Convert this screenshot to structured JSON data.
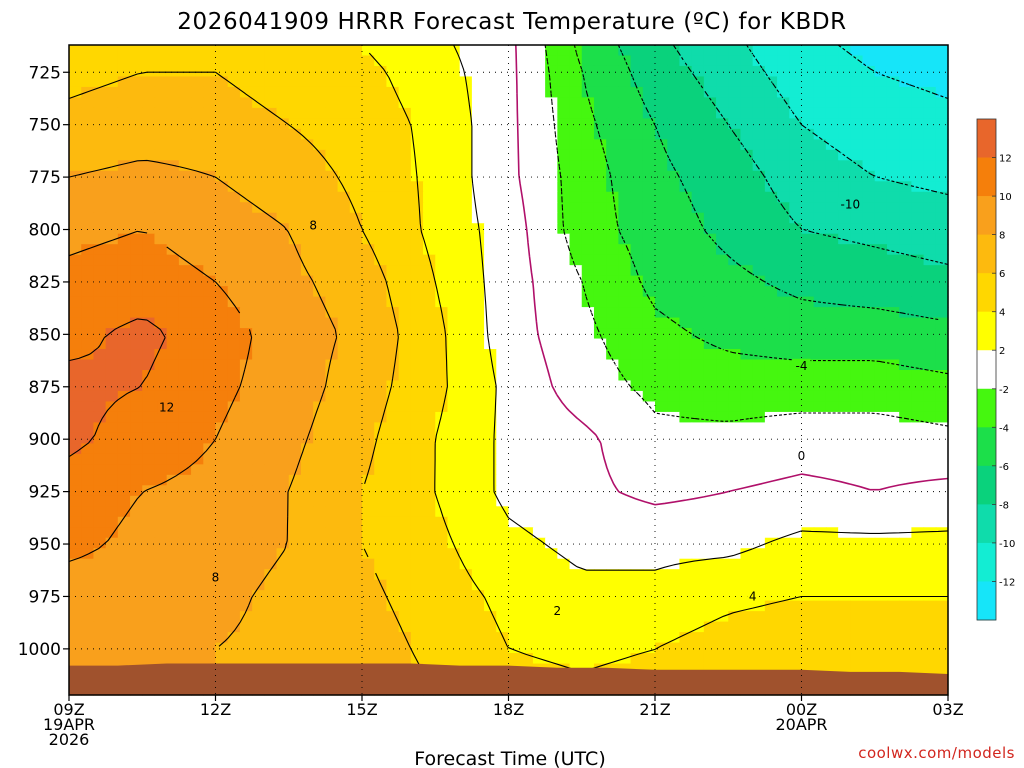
{
  "chart_data": {
    "type": "heatmap",
    "title": "2026041909 HRRR Forecast Temperature (ºC) for KBDR",
    "xlabel": "Forecast Time (UTC)",
    "ylabel": "",
    "x_ticks": [
      {
        "hour": 0,
        "lines": [
          "09Z",
          "19APR",
          "2026"
        ]
      },
      {
        "hour": 3,
        "lines": [
          "12Z"
        ]
      },
      {
        "hour": 6,
        "lines": [
          "15Z"
        ]
      },
      {
        "hour": 9,
        "lines": [
          "18Z"
        ]
      },
      {
        "hour": 12,
        "lines": [
          "21Z"
        ]
      },
      {
        "hour": 15,
        "lines": [
          "00Z",
          "20APR"
        ]
      },
      {
        "hour": 18,
        "lines": [
          "03Z"
        ]
      }
    ],
    "xlim_hours": [
      0,
      18
    ],
    "y_ticks": [
      725,
      750,
      775,
      800,
      825,
      850,
      875,
      900,
      925,
      950,
      975,
      1000
    ],
    "ylim_hpa": [
      712,
      1022
    ],
    "grid": true,
    "surface_pressure": [
      1008,
      1008,
      1007,
      1007,
      1007,
      1007,
      1007,
      1007,
      1008,
      1008,
      1009,
      1009,
      1010,
      1010,
      1010,
      1010,
      1011,
      1011,
      1012
    ],
    "temperature_grid": {
      "hours": [
        0,
        1.5,
        3,
        4.5,
        6,
        7.5,
        9,
        10.5,
        12,
        13.5,
        15,
        16.5,
        18
      ],
      "pressures": [
        712,
        725,
        750,
        775,
        800,
        825,
        850,
        875,
        900,
        925,
        950,
        975,
        1000,
        1022
      ],
      "values": [
        [
          5.0,
          5.5,
          5.5,
          4.5,
          4.0,
          2.5,
          0.5,
          -4.5,
          -7.5,
          -9.5,
          -11.5,
          -12.5,
          -13.0
        ],
        [
          5.5,
          6.0,
          6.0,
          5.0,
          4.5,
          3.0,
          0.5,
          -4.0,
          -7.0,
          -9.0,
          -11.0,
          -12.0,
          -12.5
        ],
        [
          6.5,
          7.0,
          7.0,
          6.0,
          5.0,
          3.5,
          0.5,
          -3.5,
          -6.0,
          -8.0,
          -10.0,
          -11.0,
          -11.5
        ],
        [
          8.0,
          8.5,
          8.0,
          7.0,
          5.5,
          3.5,
          0.5,
          -3.0,
          -5.5,
          -7.0,
          -9.0,
          -10.0,
          -10.5
        ],
        [
          9.5,
          10.0,
          9.0,
          8.0,
          6.0,
          3.5,
          1.0,
          -3.0,
          -5.0,
          -6.5,
          -8.0,
          -8.5,
          -9.0
        ],
        [
          10.5,
          11.0,
          10.0,
          8.5,
          7.0,
          4.0,
          1.0,
          -2.0,
          -4.5,
          -5.5,
          -6.5,
          -7.0,
          -7.5
        ],
        [
          11.5,
          12.5,
          11.0,
          9.0,
          7.5,
          4.5,
          1.0,
          -1.5,
          -3.5,
          -4.5,
          -5.0,
          -5.0,
          -5.5
        ],
        [
          12.5,
          12.0,
          10.5,
          9.0,
          7.0,
          4.5,
          1.5,
          -1.0,
          -2.5,
          -3.0,
          -3.0,
          -3.0,
          -3.5
        ],
        [
          12.5,
          11.0,
          10.0,
          8.5,
          6.5,
          4.0,
          1.5,
          0.5,
          -1.5,
          -1.5,
          -1.0,
          -1.0,
          -1.5
        ],
        [
          11.0,
          10.0,
          9.5,
          8.0,
          6.0,
          4.0,
          1.5,
          0.5,
          -0.5,
          0.0,
          0.5,
          0.0,
          0.5
        ],
        [
          10.5,
          9.5,
          9.0,
          8.0,
          6.0,
          4.5,
          2.5,
          1.5,
          1.5,
          1.5,
          2.5,
          2.5,
          2.5
        ],
        [
          9.0,
          9.0,
          8.5,
          7.5,
          6.5,
          5.0,
          3.5,
          2.5,
          2.5,
          3.5,
          4.0,
          4.0,
          4.0
        ],
        [
          8.5,
          8.5,
          8.0,
          7.5,
          7.0,
          5.5,
          4.0,
          3.5,
          4.0,
          5.0,
          5.5,
          5.5,
          5.5
        ],
        [
          8.5,
          8.5,
          8.0,
          7.5,
          7.5,
          6.0,
          5.0,
          4.5,
          5.0,
          5.5,
          5.5,
          6.0,
          6.0
        ]
      ]
    },
    "contour_levels": [
      -12,
      -10,
      -8,
      -6,
      -4,
      -2,
      0,
      2,
      4,
      6,
      8,
      10,
      12
    ],
    "contour_labels": [
      {
        "text": "8",
        "hour": 5.0,
        "p": 798
      },
      {
        "text": "12",
        "hour": 2.0,
        "p": 885
      },
      {
        "text": "8",
        "hour": 3.0,
        "p": 966
      },
      {
        "text": "2",
        "hour": 10.0,
        "p": 982
      },
      {
        "text": "-10",
        "hour": 16.0,
        "p": 788
      },
      {
        "text": "-4",
        "hour": 15.0,
        "p": 865
      },
      {
        "text": "0",
        "hour": 15.0,
        "p": 908
      },
      {
        "text": "4",
        "hour": 14.0,
        "p": 975
      }
    ],
    "colorbar": {
      "ticks": [
        "12",
        "10",
        "8",
        "6",
        "4",
        "2",
        "-2",
        "-4",
        "-6",
        "-8",
        "-10",
        "-12"
      ],
      "bands": [
        {
          "from": 14,
          "to": 12,
          "color": "#e8662b"
        },
        {
          "from": 12,
          "to": 10,
          "color": "#f57f0b"
        },
        {
          "from": 10,
          "to": 8,
          "color": "#f9a01c"
        },
        {
          "from": 8,
          "to": 6,
          "color": "#fdba0e"
        },
        {
          "from": 6,
          "to": 4,
          "color": "#ffd700"
        },
        {
          "from": 4,
          "to": 2,
          "color": "#ffff00"
        },
        {
          "from": 2,
          "to": -2,
          "color": "#ffffff"
        },
        {
          "from": -2,
          "to": -4,
          "color": "#45f70f"
        },
        {
          "from": -4,
          "to": -6,
          "color": "#1cdf4a"
        },
        {
          "from": -6,
          "to": -8,
          "color": "#0ad27c"
        },
        {
          "from": -8,
          "to": -10,
          "color": "#0fdcab"
        },
        {
          "from": -10,
          "to": -12,
          "color": "#13edd3"
        },
        {
          "from": -12,
          "to": -14,
          "color": "#16e5f9"
        }
      ]
    },
    "ground_color": "#a0522d",
    "zero_line_color": "#b0106a"
  },
  "credit": "coolwx.com/models"
}
